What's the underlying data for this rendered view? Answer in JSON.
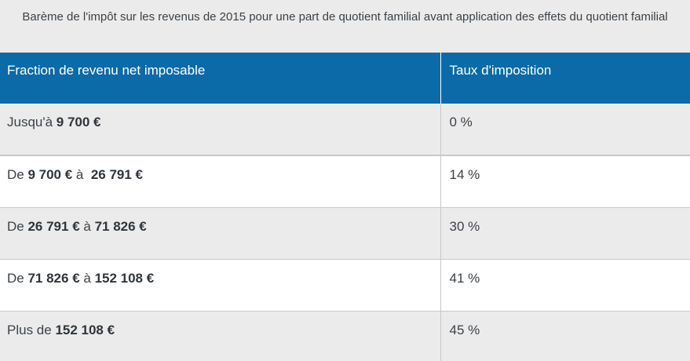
{
  "caption": "Barème de l'impôt sur les revenus de 2015 pour une part de quotient familial avant application des effets du quotient familial",
  "headers": {
    "col1": "Fraction de revenu net imposable",
    "col2": "Taux d'imposition"
  },
  "rows": [
    {
      "prefix": "Jusqu'à ",
      "from": "9 700 €",
      "mid": "",
      "to": "",
      "rate": "0 %"
    },
    {
      "prefix": "De ",
      "from": "9 700 €",
      "mid": " à  ",
      "to": "26 791 €",
      "rate": "14 %"
    },
    {
      "prefix": "De ",
      "from": "26 791 €",
      "mid": " à ",
      "to": "71 826 €",
      "rate": "30 %"
    },
    {
      "prefix": "De ",
      "from": "71 826 €",
      "mid": " à ",
      "to": "152 108 €",
      "rate": "41 %"
    },
    {
      "prefix": "Plus de ",
      "from": "152 108 €",
      "mid": "",
      "to": "",
      "rate": "45 %"
    }
  ]
}
